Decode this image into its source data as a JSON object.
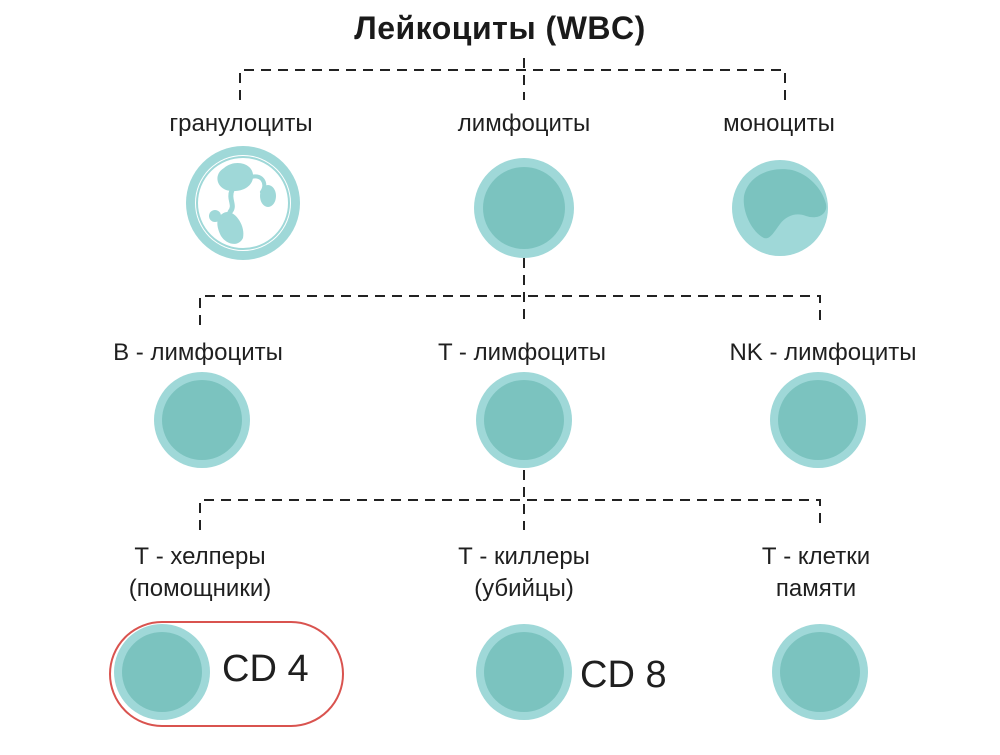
{
  "title": "Лейкоциты (WBC)",
  "level1": {
    "granulocytes": "гранулоциты",
    "lymphocytes": "лимфоциты",
    "monocytes": "моноциты"
  },
  "level2": {
    "b_cells": "B - лимфоциты",
    "t_cells": "T - лимфоциты",
    "nk_cells": "NK - лимфоциты"
  },
  "level3": {
    "helpers_line1": "Т - хелперы",
    "helpers_line2": "(помощники)",
    "killers_line1": "Т - киллеры",
    "killers_line2": "(убийцы)",
    "memory_line1": "Т - клетки",
    "memory_line2": "памяти"
  },
  "markers": {
    "cd4": "CD 4",
    "cd8": "CD 8"
  },
  "colors": {
    "cell_outer": "#9fd8d8",
    "cell_inner": "#7bc3bf",
    "highlight_border": "#d9534f",
    "connector": "#222222"
  }
}
